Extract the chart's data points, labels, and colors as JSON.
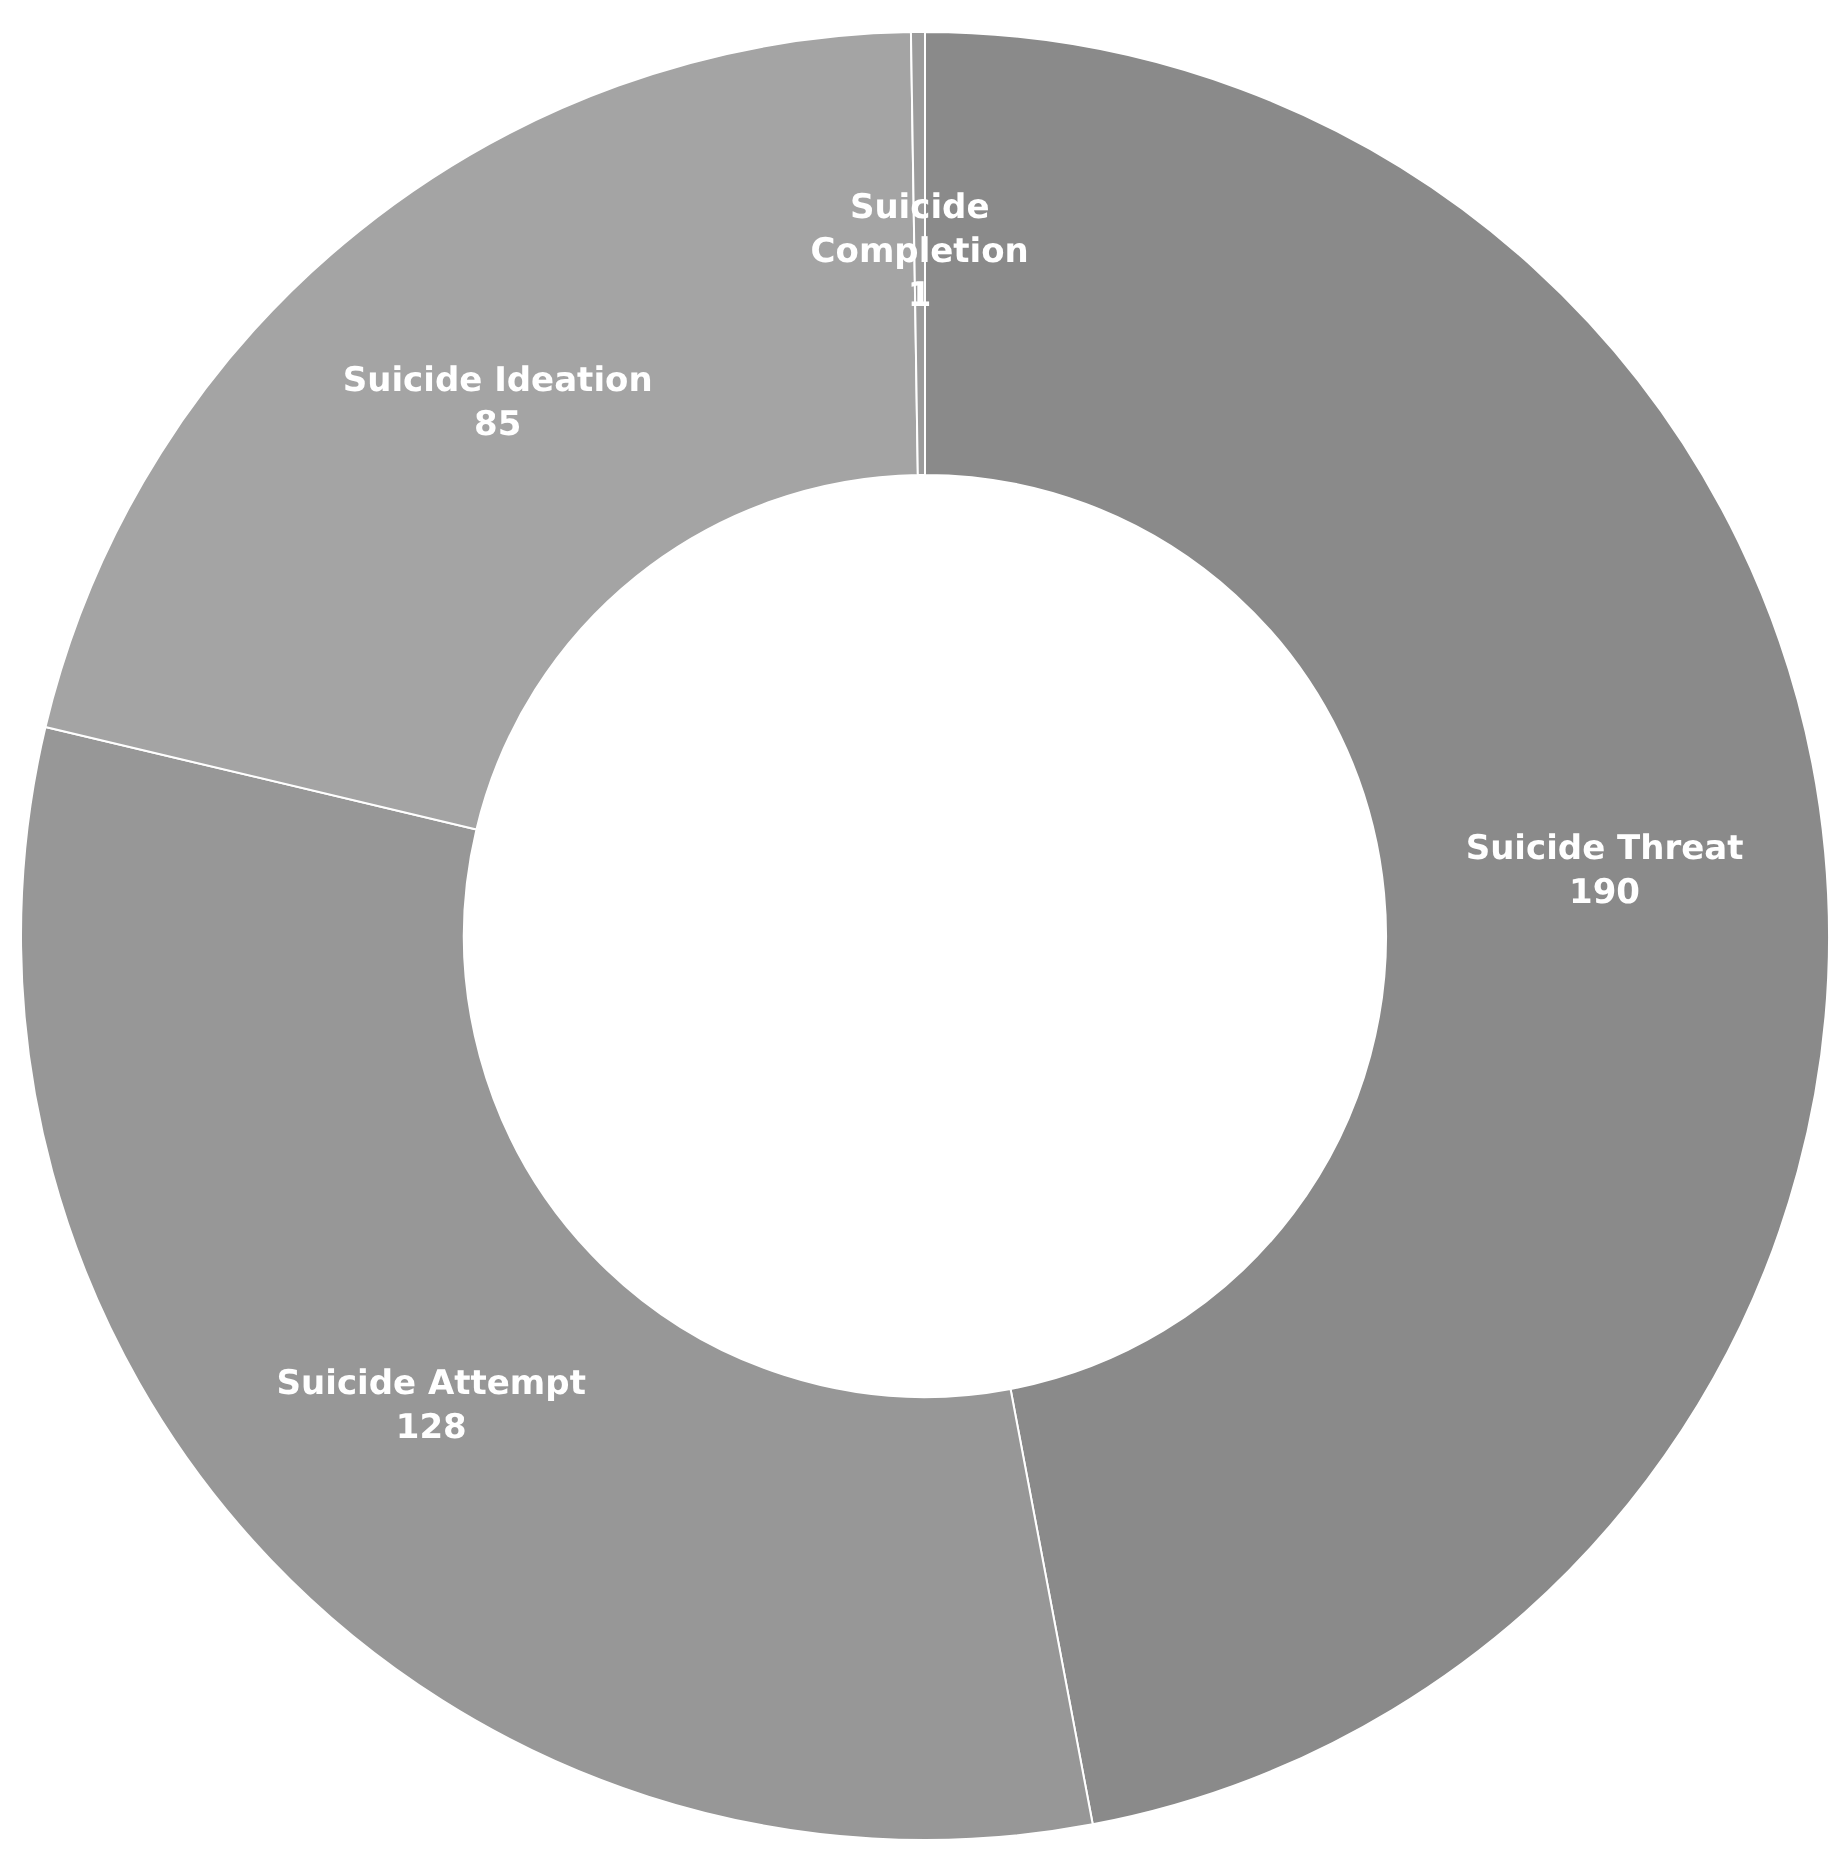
{
  "chart_data": {
    "type": "donut",
    "categories": [
      "Suicide Threat",
      "Suicide Attempt",
      "Suicide Ideation",
      "Suicide Completion"
    ],
    "values": [
      190,
      128,
      85,
      1
    ],
    "colors": [
      "#8a8a8a",
      "#979797",
      "#a4a4a4",
      "#9c9c9c"
    ],
    "data_labels": true,
    "legend": false
  }
}
